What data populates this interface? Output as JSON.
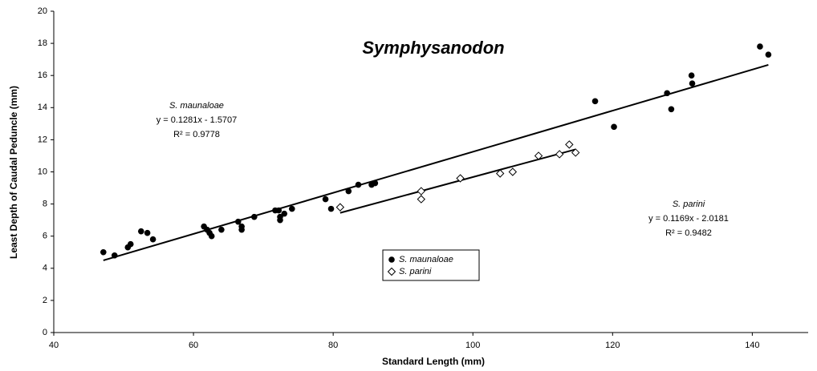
{
  "chart_data": {
    "type": "scatter",
    "title": "Symphysanodon",
    "x_label": "Standard Length (mm)",
    "y_label": "Least Depth of Caudal Peduncle (mm)",
    "xlim": [
      40,
      148
    ],
    "xticks": [
      40,
      60,
      80,
      100,
      120,
      140
    ],
    "ylim": [
      0,
      20
    ],
    "yticks": [
      0,
      2,
      4,
      6,
      8,
      10,
      12,
      14,
      16,
      18,
      20
    ],
    "series": [
      {
        "name": "S. maunaloae",
        "color": "#000000",
        "marker": "circle",
        "x": [
          47.1,
          48.7,
          50.6,
          51.0,
          52.5,
          53.4,
          54.2,
          61.5,
          61.95,
          62.3,
          62.6,
          64.0,
          66.4,
          66.9,
          66.9,
          68.7,
          71.7,
          72.2,
          72.4,
          72.4,
          73.0,
          74.1,
          78.9,
          79.7,
          82.2,
          83.6,
          85.5,
          86.0,
          117.5,
          120.2,
          127.8,
          128.4,
          131.3,
          131.4,
          141.1,
          142.3
        ],
        "values": [
          5.0,
          4.8,
          5.3,
          5.5,
          6.3,
          6.2,
          5.8,
          6.6,
          6.4,
          6.2,
          6.0,
          6.4,
          6.9,
          6.6,
          6.4,
          7.2,
          7.6,
          7.6,
          7.2,
          7.0,
          7.4,
          7.7,
          8.3,
          7.7,
          8.8,
          9.2,
          9.2,
          9.3,
          14.4,
          12.8,
          14.9,
          13.9,
          16.0,
          15.5,
          17.8,
          17.3
        ],
        "trendline": {
          "x": [
            47.1,
            142.3
          ],
          "y": [
            4.49,
            16.66
          ]
        }
      },
      {
        "name": "S. parini",
        "color": "#000000",
        "marker": "diamond",
        "x": [
          81.0,
          92.6,
          92.6,
          98.2,
          103.9,
          105.7,
          109.4,
          112.4,
          113.8,
          114.7
        ],
        "values": [
          7.8,
          8.8,
          8.3,
          9.6,
          9.9,
          10.0,
          11.0,
          11.1,
          11.7,
          11.2
        ],
        "trendline": {
          "x": [
            81.0,
            114.7
          ],
          "y": [
            7.45,
            11.4
          ]
        }
      }
    ],
    "annotations": [
      {
        "name": "S. maunaloae",
        "equation": "y = 0.1281x - 1.5707",
        "r2": "R² = 0.9778"
      },
      {
        "name": "S. parini",
        "equation": "y = 0.1169x - 2.0181",
        "r2": "R² = 0.9482"
      }
    ]
  }
}
